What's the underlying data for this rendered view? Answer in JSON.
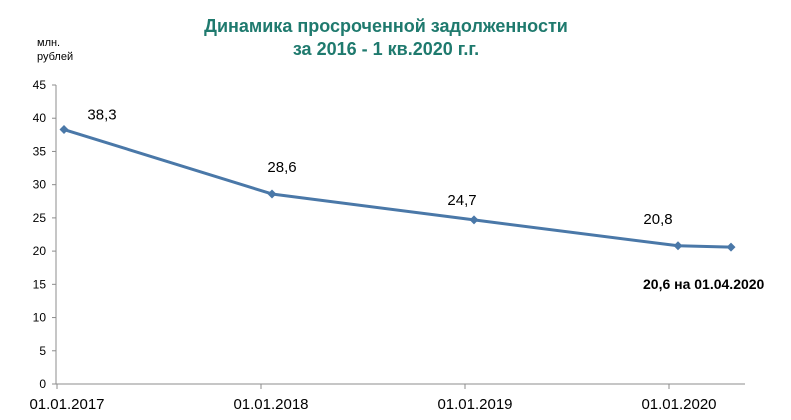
{
  "chart_data": {
    "type": "line",
    "title_lines": [
      "Динамика просроченной задолженности",
      "за 2016 - 1 кв.2020 г.г."
    ],
    "ylabel_lines": [
      "млн.",
      "рублей"
    ],
    "xlabel": "",
    "ylim": [
      0,
      45
    ],
    "yticks": [
      0,
      5,
      10,
      15,
      20,
      25,
      30,
      35,
      40,
      45
    ],
    "x": [
      "01.01.2017",
      "01.01.2018",
      "01.01.2019",
      "01.01.2020",
      "01.04.2020"
    ],
    "xtick_labels": [
      "01.01.2017",
      "01.01.2018",
      "01.01.2019",
      "01.01.2020"
    ],
    "series": [
      {
        "values": [
          38.3,
          28.6,
          24.7,
          20.8,
          20.6
        ],
        "data_labels": [
          "38,3",
          "28,6",
          "24,7",
          "20,8",
          ""
        ],
        "color": "#4a78a8"
      }
    ],
    "annotation": "20,6 на 01.04.2020",
    "grid": false,
    "legend": "none"
  }
}
